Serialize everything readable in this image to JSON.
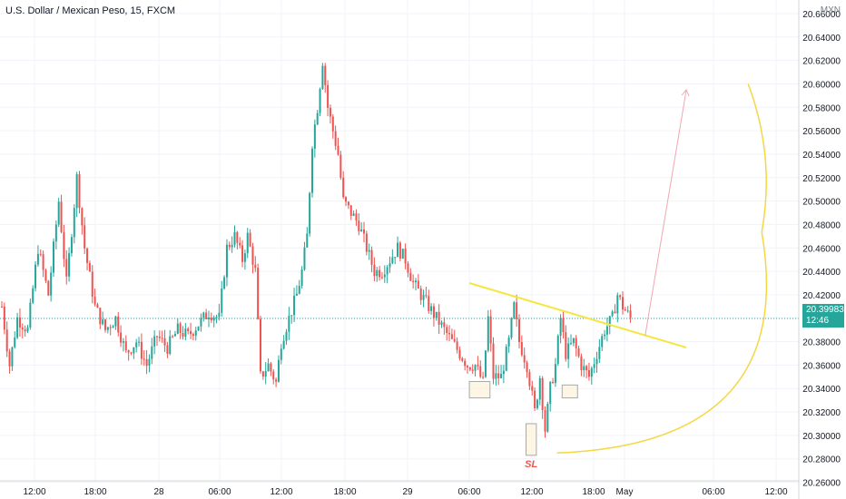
{
  "header": {
    "title": "U.S. Dollar / Mexican Peso, 15, FXCM"
  },
  "currency_label": "MXN",
  "last_price": {
    "value": "20.39983",
    "countdown": "12:46"
  },
  "annotation_sl": "SL",
  "colors": {
    "up": "#26a69a",
    "down": "#ef5350",
    "trendline": "#f5e642",
    "arc": "#f5d742",
    "arrow": "#f4a6b0",
    "box_fill": "#fdf2d8",
    "box_stroke": "#a9a9a9",
    "sl": "#ef5350"
  },
  "chart_data": {
    "type": "candlestick",
    "title": "U.S. Dollar / Mexican Peso, 15, FXCM",
    "y_unit": "MXN",
    "ylim": [
      20.25,
      20.67
    ],
    "y_ticks": [
      "20.26000",
      "20.28000",
      "20.30000",
      "20.32000",
      "20.34000",
      "20.36000",
      "20.38000",
      "20.40000",
      "20.42000",
      "20.44000",
      "20.46000",
      "20.48000",
      "20.50000",
      "20.52000",
      "20.54000",
      "20.56000",
      "20.58000",
      "20.60000",
      "20.62000",
      "20.64000",
      "20.66000"
    ],
    "x_ticks": [
      "12:00",
      "18:00",
      "28",
      "06:00",
      "12:00",
      "18:00",
      "29",
      "06:00",
      "12:00",
      "18:00",
      "May",
      "06:00",
      "12:00"
    ],
    "last_price": 20.39983,
    "price_path": [
      [
        0,
        20.41
      ],
      [
        3,
        20.36
      ],
      [
        6,
        20.4
      ],
      [
        10,
        20.39
      ],
      [
        14,
        20.46
      ],
      [
        18,
        20.42
      ],
      [
        22,
        20.5
      ],
      [
        25,
        20.43
      ],
      [
        29,
        20.52
      ],
      [
        32,
        20.46
      ],
      [
        36,
        20.41
      ],
      [
        40,
        20.39
      ],
      [
        44,
        20.4
      ],
      [
        48,
        20.37
      ],
      [
        52,
        20.38
      ],
      [
        56,
        20.36
      ],
      [
        60,
        20.385
      ],
      [
        64,
        20.375
      ],
      [
        68,
        20.39
      ],
      [
        72,
        20.385
      ],
      [
        76,
        20.395
      ],
      [
        80,
        20.405
      ],
      [
        84,
        20.4
      ],
      [
        87,
        20.46
      ],
      [
        90,
        20.47
      ],
      [
        93,
        20.45
      ],
      [
        95,
        20.47
      ],
      [
        98,
        20.44
      ],
      [
        100,
        20.35
      ],
      [
        103,
        20.36
      ],
      [
        106,
        20.345
      ],
      [
        108,
        20.38
      ],
      [
        111,
        20.4
      ],
      [
        114,
        20.42
      ],
      [
        116,
        20.44
      ],
      [
        118,
        20.47
      ],
      [
        120,
        20.55
      ],
      [
        122,
        20.58
      ],
      [
        124,
        20.62
      ],
      [
        126,
        20.58
      ],
      [
        128,
        20.56
      ],
      [
        130,
        20.54
      ],
      [
        132,
        20.5
      ],
      [
        135,
        20.49
      ],
      [
        138,
        20.48
      ],
      [
        141,
        20.46
      ],
      [
        144,
        20.44
      ],
      [
        147,
        20.44
      ],
      [
        150,
        20.45
      ],
      [
        153,
        20.46
      ],
      [
        156,
        20.45
      ],
      [
        159,
        20.43
      ],
      [
        162,
        20.42
      ],
      [
        165,
        20.41
      ],
      [
        168,
        20.4
      ],
      [
        171,
        20.39
      ],
      [
        174,
        20.38
      ],
      [
        177,
        20.37
      ],
      [
        180,
        20.36
      ],
      [
        183,
        20.36
      ],
      [
        186,
        20.345
      ],
      [
        188,
        20.4
      ],
      [
        190,
        20.35
      ],
      [
        193,
        20.35
      ],
      [
        196,
        20.38
      ],
      [
        198,
        20.41
      ],
      [
        200,
        20.38
      ],
      [
        203,
        20.36
      ],
      [
        206,
        20.32
      ],
      [
        208,
        20.35
      ],
      [
        210,
        20.305
      ],
      [
        212,
        20.34
      ],
      [
        214,
        20.36
      ],
      [
        216,
        20.4
      ],
      [
        218,
        20.37
      ],
      [
        221,
        20.38
      ],
      [
        224,
        20.36
      ],
      [
        227,
        20.35
      ],
      [
        230,
        20.37
      ],
      [
        233,
        20.39
      ],
      [
        236,
        20.4
      ],
      [
        238,
        20.42
      ],
      [
        240,
        20.41
      ],
      [
        243,
        20.4
      ]
    ],
    "trendline": {
      "from": [
        "29 06:00",
        20.43
      ],
      "to": [
        "May 06:00",
        20.375
      ]
    },
    "projection_arrow": {
      "from": [
        "May 02:00",
        20.385
      ],
      "to": [
        "May 06:00",
        20.595
      ]
    },
    "stop_loss_arc": {
      "from": [
        "29 14:30",
        20.285
      ],
      "to": [
        "May 12:00",
        20.6
      ]
    },
    "boxes": [
      {
        "from": [
          "29 06:00",
          20.332
        ],
        "to": [
          "29 08:00",
          20.346
        ]
      },
      {
        "from": [
          "29 11:30",
          20.283
        ],
        "to": [
          "29 12:30",
          20.31
        ]
      },
      {
        "from": [
          "29 15:00",
          20.332
        ],
        "to": [
          "29 16:30",
          20.343
        ]
      }
    ],
    "grid": true,
    "price_line": {
      "value": 20.39983,
      "style": "dotted"
    }
  }
}
